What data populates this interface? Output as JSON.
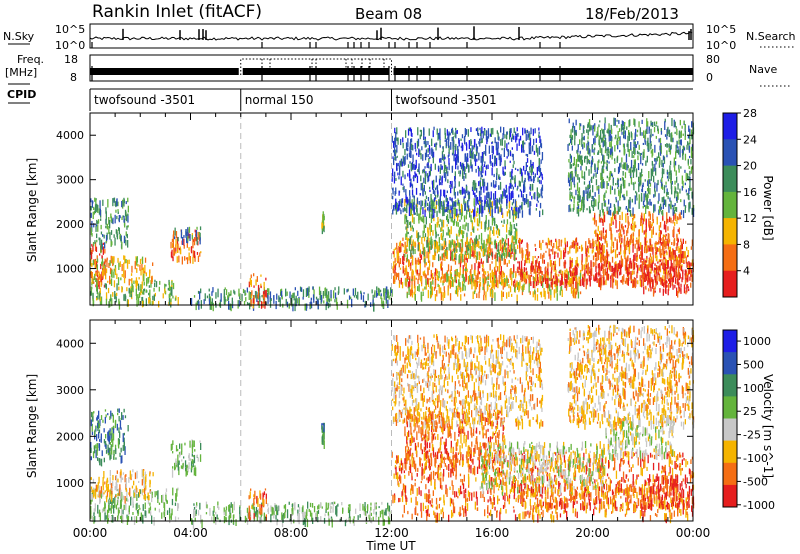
{
  "header": {
    "title": "Rankin Inlet (fitACF)",
    "beam": "Beam 08",
    "date": "18/Feb/2013"
  },
  "strips": {
    "nsky_label": "N.Sky",
    "nsky_top_tick": "10^5",
    "nsky_bottom_tick": "10^0",
    "nsearch_label": "N.Search",
    "nsearch_top_tick": "10^5",
    "nsearch_bottom_tick": "10^0",
    "freq_label": "Freq.",
    "freq_unit": "[MHz]",
    "freq_top_tick": "18",
    "freq_bottom_tick": "8",
    "nave_label": "Nave",
    "nave_top_tick": "80",
    "nave_bottom_tick": "0",
    "cpid_label": "CPID",
    "cpid_segments": [
      {
        "label": "twofsound -3501",
        "start_h": 0,
        "end_h": 6
      },
      {
        "label": "normal 150",
        "start_h": 6,
        "end_h": 12
      },
      {
        "label": "twofsound -3501",
        "start_h": 12,
        "end_h": 24
      }
    ]
  },
  "chart_data": [
    {
      "type": "heatmap",
      "name": "power-panel",
      "xlabel": "",
      "ylabel": "Slant Range [km]",
      "xlim": [
        0,
        24
      ],
      "ylim": [
        180,
        4500
      ],
      "yticks": [
        1000,
        2000,
        3000,
        4000
      ],
      "colorbar_label": "Power [dB]",
      "colorbar_ticks": [
        "4",
        "8",
        "12",
        "16",
        "20",
        "24",
        "28"
      ],
      "colorbar_colors": [
        "#1e1ee6",
        "#2a52b4",
        "#3c8c5a",
        "#64b43c",
        "#f5b400",
        "#f56e14",
        "#e61e1e"
      ],
      "regions": [
        {
          "h0": 0.0,
          "h1": 0.6,
          "r0": 600,
          "r1": 1600,
          "level": 6
        },
        {
          "h0": 0.0,
          "h1": 3.5,
          "r0": 250,
          "r1": 750,
          "level": 3
        },
        {
          "h0": 0.0,
          "h1": 1.5,
          "r0": 1500,
          "r1": 2600,
          "level": 2
        },
        {
          "h0": 0.0,
          "h1": 2.5,
          "r0": 700,
          "r1": 1300,
          "level": 4
        },
        {
          "h0": 3.2,
          "h1": 4.4,
          "r0": 1250,
          "r1": 1900,
          "level": 5
        },
        {
          "h0": 3.2,
          "h1": 4.4,
          "r0": 1700,
          "r1": 1950,
          "level": 2
        },
        {
          "h0": 4.0,
          "h1": 12.0,
          "r0": 200,
          "r1": 600,
          "level": 2
        },
        {
          "h0": 6.3,
          "h1": 7.0,
          "r0": 250,
          "r1": 900,
          "level": 5
        },
        {
          "h0": 9.2,
          "h1": 9.3,
          "r0": 1900,
          "r1": 2300,
          "level": 3
        },
        {
          "h0": 12.0,
          "h1": 24.0,
          "r0": 700,
          "r1": 1700,
          "level": 5
        },
        {
          "h0": 12.5,
          "h1": 17.0,
          "r0": 1300,
          "r1": 2600,
          "level": 3
        },
        {
          "h0": 12.5,
          "h1": 19.5,
          "r0": 400,
          "r1": 1000,
          "level": 4
        },
        {
          "h0": 17.0,
          "h1": 23.5,
          "r0": 700,
          "r1": 1200,
          "level": 6
        },
        {
          "h0": 20.0,
          "h1": 23.5,
          "r0": 1200,
          "r1": 2300,
          "level": 5
        },
        {
          "h0": 22.0,
          "h1": 24.0,
          "r0": 500,
          "r1": 1200,
          "level": 6
        },
        {
          "h0": 19.0,
          "h1": 24.0,
          "r0": 2300,
          "r1": 4400,
          "level": 2
        },
        {
          "h0": 12.0,
          "h1": 18.0,
          "r0": 2300,
          "r1": 4200,
          "level": 1
        }
      ]
    },
    {
      "type": "heatmap",
      "name": "velocity-panel",
      "xlabel": "Time UT",
      "ylabel": "Slant Range [km]",
      "xlim": [
        0,
        24
      ],
      "ylim": [
        180,
        4500
      ],
      "yticks": [
        1000,
        2000,
        3000,
        4000
      ],
      "xticks": [
        "00:00",
        "04:00",
        "08:00",
        "12:00",
        "16:00",
        "20:00",
        "00:00"
      ],
      "colorbar_label": "Velocity [m s^-1]",
      "colorbar_ticks": [
        "1000",
        "500",
        "100",
        "25",
        "-25",
        "-100",
        "-500",
        "-1000"
      ],
      "colorbar_colors": [
        "#1e1ee6",
        "#2a52b4",
        "#3c8c5a",
        "#64b43c",
        "#c8c8c8",
        "#f5b400",
        "#f56e14",
        "#e61e1e"
      ],
      "regions": [
        {
          "h0": 0.0,
          "h1": 1.5,
          "r0": 1500,
          "r1": 2600,
          "level": 2
        },
        {
          "h0": 0.0,
          "h1": 3.5,
          "r0": 250,
          "r1": 900,
          "level": 3
        },
        {
          "h0": 0.0,
          "h1": 2.5,
          "r0": 700,
          "r1": 1300,
          "level": 5
        },
        {
          "h0": 3.2,
          "h1": 4.4,
          "r0": 1250,
          "r1": 1950,
          "level": 3
        },
        {
          "h0": 4.0,
          "h1": 12.0,
          "r0": 200,
          "r1": 600,
          "level": 3
        },
        {
          "h0": 6.3,
          "h1": 7.0,
          "r0": 250,
          "r1": 900,
          "level": 6
        },
        {
          "h0": 9.2,
          "h1": 9.3,
          "r0": 1900,
          "r1": 2300,
          "level": 2
        },
        {
          "h0": 12.0,
          "h1": 24.0,
          "r0": 300,
          "r1": 1700,
          "level": 6
        },
        {
          "h0": 12.5,
          "h1": 16.5,
          "r0": 1300,
          "r1": 2600,
          "level": 6
        },
        {
          "h0": 15.5,
          "h1": 20.5,
          "r0": 900,
          "r1": 1900,
          "level": 4
        },
        {
          "h0": 20.5,
          "h1": 23.2,
          "r0": 1600,
          "r1": 2500,
          "level": 4
        },
        {
          "h0": 17.0,
          "h1": 23.5,
          "r0": 500,
          "r1": 1000,
          "level": 6
        },
        {
          "h0": 22.0,
          "h1": 24.0,
          "r0": 500,
          "r1": 1200,
          "level": 7
        },
        {
          "h0": 19.0,
          "h1": 24.0,
          "r0": 2300,
          "r1": 4400,
          "level": 5
        },
        {
          "h0": 12.0,
          "h1": 18.0,
          "r0": 2300,
          "r1": 4200,
          "level": 5
        }
      ]
    }
  ]
}
